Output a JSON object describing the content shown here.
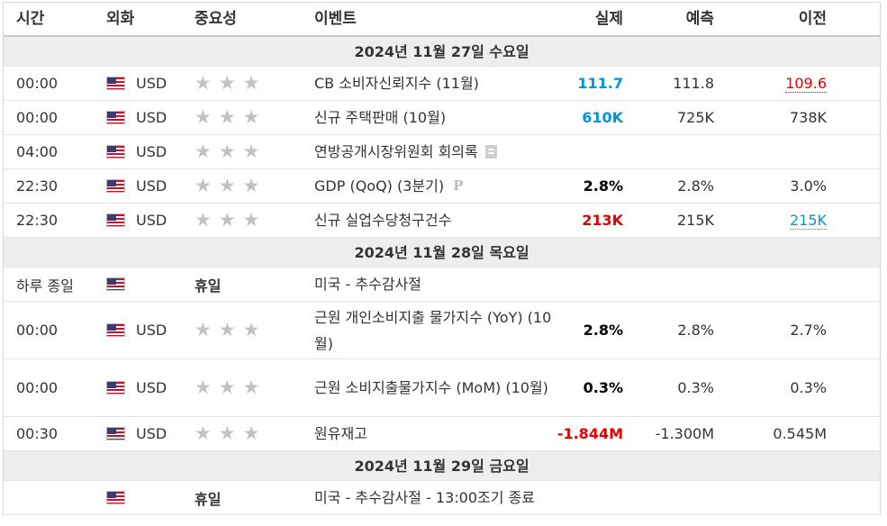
{
  "header": {
    "time": "시간",
    "currency": "외화",
    "importance": "중요성",
    "event": "이벤트",
    "actual": "실제",
    "forecast": "예측",
    "previous": "이전"
  },
  "days": [
    {
      "date": "2024년 11월 27일 수요일",
      "events": [
        {
          "time": "00:00",
          "currency": "USD",
          "stars": 3,
          "event": "CB 소비자신뢰지수 (11월)",
          "actual": "111.7",
          "actual_color": "#0095d9",
          "forecast": "111.8",
          "previous": "109.6",
          "previous_color": "#e20000",
          "icon": ""
        },
        {
          "time": "00:00",
          "currency": "USD",
          "stars": 3,
          "event": "신규 주택판매 (10월)",
          "actual": "610K",
          "actual_color": "#0095d9",
          "forecast": "725K",
          "previous": "738K",
          "previous_color": "",
          "icon": ""
        },
        {
          "time": "04:00",
          "currency": "USD",
          "stars": 3,
          "event": "연방공개시장위원회 회의록",
          "actual": "",
          "actual_color": "",
          "forecast": "",
          "previous": "",
          "previous_color": "",
          "icon": "document-icon"
        },
        {
          "time": "22:30",
          "currency": "USD",
          "stars": 3,
          "event": "GDP (QoQ) (3분기)",
          "actual": "2.8%",
          "actual_color": "#000000",
          "forecast": "2.8%",
          "previous": "3.0%",
          "previous_color": "",
          "icon": "preliminary-icon"
        },
        {
          "time": "22:30",
          "currency": "USD",
          "stars": 3,
          "event": "신규 실업수당청구건수",
          "actual": "213K",
          "actual_color": "#e20000",
          "forecast": "215K",
          "previous": "215K",
          "previous_color": "#0095d9",
          "icon": ""
        }
      ]
    },
    {
      "date": "2024년 11월 28일 목요일",
      "events": [
        {
          "time": "하루 종일",
          "currency": "",
          "stars": 0,
          "holiday": "휴일",
          "event": "미국 - 추수감사절",
          "actual": "",
          "forecast": "",
          "previous": ""
        },
        {
          "time": "00:00",
          "currency": "USD",
          "stars": 3,
          "event": "근원 개인소비지출 물가지수 (YoY) (10월)",
          "actual": "2.8%",
          "actual_color": "#000000",
          "forecast": "2.8%",
          "previous": "2.7%",
          "previous_color": "",
          "icon": ""
        },
        {
          "time": "00:00",
          "currency": "USD",
          "stars": 3,
          "event": "근원 소비지출물가지수 (MoM) (10월)",
          "actual": "0.3%",
          "actual_color": "#000000",
          "forecast": "0.3%",
          "previous": "0.3%",
          "previous_color": "",
          "icon": ""
        },
        {
          "time": "00:30",
          "currency": "USD",
          "stars": 3,
          "event": "원유재고",
          "actual": "-1.844M",
          "actual_color": "#e20000",
          "forecast": "-1.300M",
          "previous": "0.545M",
          "previous_color": "",
          "icon": ""
        }
      ]
    },
    {
      "date": "2024년 11월 29일 금요일",
      "events": [
        {
          "time": "",
          "currency": "",
          "stars": 0,
          "holiday": "휴일",
          "event": "미국 - 추수감사절 - 13:00조기 종료",
          "actual": "",
          "forecast": "",
          "previous": ""
        }
      ]
    }
  ]
}
